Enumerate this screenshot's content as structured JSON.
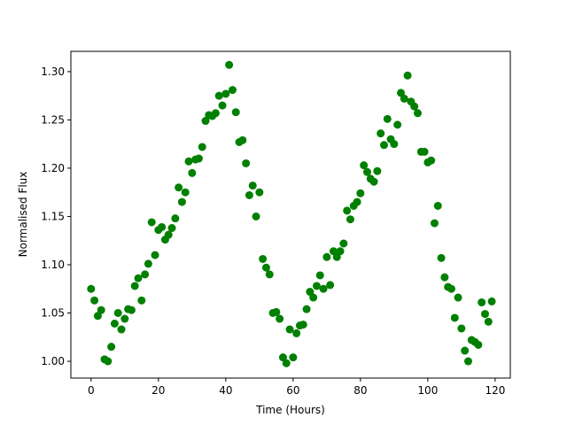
{
  "chart_data": {
    "type": "scatter",
    "x_label": "Time (Hours)",
    "y_label": "Normalised Flux",
    "color": "#008000",
    "x": [
      0,
      1,
      2,
      3,
      4,
      5,
      6,
      7,
      8,
      9,
      10,
      11,
      12,
      13,
      14,
      15,
      16,
      17,
      18,
      19,
      20,
      21,
      22,
      23,
      24,
      25,
      26,
      27,
      28,
      29,
      30,
      31,
      32,
      33,
      34,
      35,
      36,
      37,
      38,
      39,
      40,
      41,
      42,
      43,
      44,
      45,
      46,
      47,
      48,
      49,
      50,
      51,
      52,
      53,
      54,
      55,
      56,
      57,
      58,
      59,
      60,
      61,
      62,
      63,
      64,
      65,
      66,
      67,
      68,
      69,
      70,
      71,
      72,
      73,
      74,
      75,
      76,
      77,
      78,
      79,
      80,
      81,
      82,
      83,
      84,
      85,
      86,
      87,
      88,
      89,
      90,
      91,
      92,
      93,
      94,
      95,
      96,
      97,
      98,
      99,
      100,
      101,
      102,
      103,
      104,
      105,
      106,
      107,
      108,
      109,
      110,
      111,
      112,
      113,
      114,
      115,
      116,
      117,
      118,
      119
    ],
    "values": [
      1.075,
      1.063,
      1.047,
      1.053,
      1.002,
      1.0,
      1.015,
      1.039,
      1.05,
      1.033,
      1.044,
      1.054,
      1.053,
      1.078,
      1.086,
      1.063,
      1.09,
      1.101,
      1.144,
      1.11,
      1.136,
      1.139,
      1.126,
      1.131,
      1.138,
      1.148,
      1.18,
      1.165,
      1.175,
      1.207,
      1.195,
      1.209,
      1.21,
      1.222,
      1.249,
      1.255,
      1.254,
      1.257,
      1.275,
      1.265,
      1.277,
      1.307,
      1.281,
      1.258,
      1.227,
      1.229,
      1.205,
      1.172,
      1.182,
      1.15,
      1.175,
      1.106,
      1.097,
      1.09,
      1.05,
      1.051,
      1.044,
      1.004,
      0.998,
      1.033,
      1.004,
      1.029,
      1.037,
      1.038,
      1.054,
      1.072,
      1.066,
      1.078,
      1.089,
      1.075,
      1.108,
      1.079,
      1.114,
      1.108,
      1.114,
      1.122,
      1.156,
      1.147,
      1.161,
      1.165,
      1.174,
      1.203,
      1.196,
      1.189,
      1.186,
      1.197,
      1.236,
      1.224,
      1.251,
      1.23,
      1.225,
      1.245,
      1.278,
      1.272,
      1.296,
      1.269,
      1.264,
      1.257,
      1.217,
      1.217,
      1.206,
      1.208,
      1.143,
      1.161,
      1.107,
      1.087,
      1.077,
      1.075,
      1.045,
      1.066,
      1.034,
      1.011,
      1.0,
      1.022,
      1.02,
      1.017,
      1.061,
      1.049,
      1.041,
      1.062
    ],
    "xlim": [
      -6,
      124.5
    ],
    "ylim": [
      0.9826,
      1.321
    ],
    "xticks": [
      0,
      20,
      40,
      60,
      80,
      100,
      120
    ],
    "yticks": [
      {
        "value": 1.0,
        "label": "1.00"
      },
      1.05,
      {
        "value": 1.1,
        "label": "1.10"
      },
      1.15,
      {
        "value": 1.2,
        "label": "1.20"
      },
      1.25,
      {
        "value": 1.3,
        "label": "1.30"
      }
    ]
  }
}
